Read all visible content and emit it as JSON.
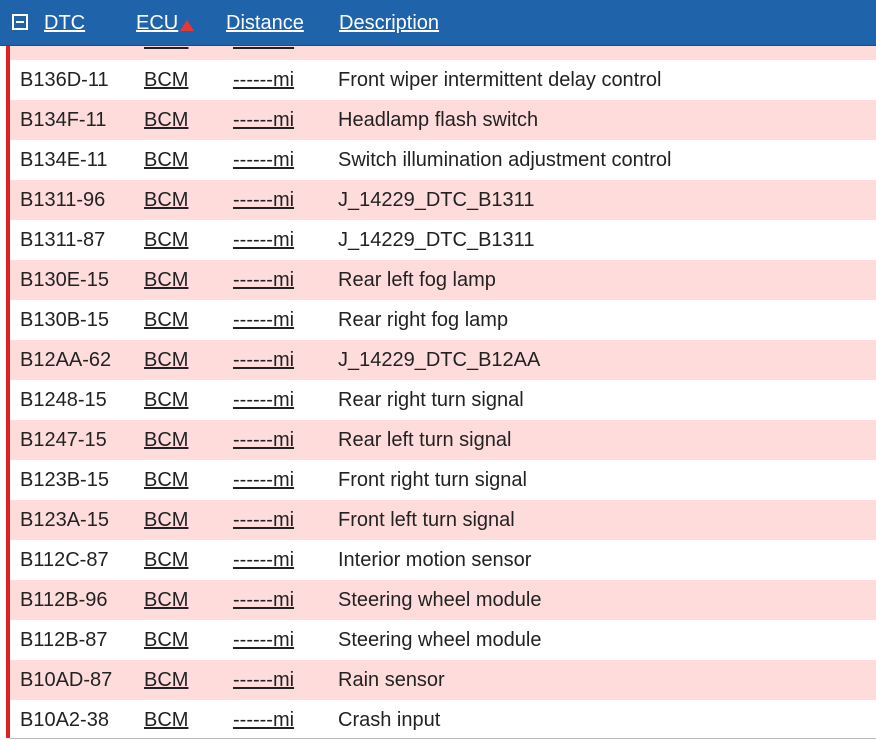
{
  "header": {
    "columns": {
      "dtc": "DTC",
      "ecu": "ECU",
      "distance": "Distance",
      "description": "Description"
    }
  },
  "rows": [
    {
      "dtc": "",
      "ecu": "BCM",
      "distance": "------mi",
      "description": "",
      "shaded": true
    },
    {
      "dtc": "B136D-11",
      "ecu": "BCM",
      "distance": "------mi",
      "description": "Front wiper intermittent delay control",
      "shaded": false
    },
    {
      "dtc": "B134F-11",
      "ecu": "BCM",
      "distance": "------mi",
      "description": "Headlamp flash switch",
      "shaded": true
    },
    {
      "dtc": "B134E-11",
      "ecu": "BCM",
      "distance": "------mi",
      "description": "Switch illumination adjustment control",
      "shaded": false
    },
    {
      "dtc": "B1311-96",
      "ecu": "BCM",
      "distance": "------mi",
      "description": "J_14229_DTC_B1311",
      "shaded": true
    },
    {
      "dtc": "B1311-87",
      "ecu": "BCM",
      "distance": "------mi",
      "description": "J_14229_DTC_B1311",
      "shaded": false
    },
    {
      "dtc": "B130E-15",
      "ecu": "BCM",
      "distance": "------mi",
      "description": "Rear left fog lamp",
      "shaded": true
    },
    {
      "dtc": "B130B-15",
      "ecu": "BCM",
      "distance": "------mi",
      "description": "Rear right fog lamp",
      "shaded": false
    },
    {
      "dtc": "B12AA-62",
      "ecu": "BCM",
      "distance": "------mi",
      "description": "J_14229_DTC_B12AA",
      "shaded": true
    },
    {
      "dtc": "B1248-15",
      "ecu": "BCM",
      "distance": "------mi",
      "description": "Rear right turn signal",
      "shaded": false
    },
    {
      "dtc": "B1247-15",
      "ecu": "BCM",
      "distance": "------mi",
      "description": "Rear left turn signal",
      "shaded": true
    },
    {
      "dtc": "B123B-15",
      "ecu": "BCM",
      "distance": "------mi",
      "description": "Front right turn signal",
      "shaded": false
    },
    {
      "dtc": "B123A-15",
      "ecu": "BCM",
      "distance": "------mi",
      "description": "Front left turn signal",
      "shaded": true
    },
    {
      "dtc": "B112C-87",
      "ecu": "BCM",
      "distance": "------mi",
      "description": "Interior motion sensor",
      "shaded": false
    },
    {
      "dtc": "B112B-96",
      "ecu": "BCM",
      "distance": "------mi",
      "description": "Steering wheel module",
      "shaded": true
    },
    {
      "dtc": "B112B-87",
      "ecu": "BCM",
      "distance": "------mi",
      "description": "Steering wheel module",
      "shaded": false
    },
    {
      "dtc": "B10AD-87",
      "ecu": "BCM",
      "distance": "------mi",
      "description": "Rain sensor",
      "shaded": true
    },
    {
      "dtc": "B10A2-38",
      "ecu": "BCM",
      "distance": "------mi",
      "description": "Crash input",
      "shaded": false
    }
  ],
  "colors": {
    "header_bg": "#1f63aa",
    "row_shade": "#ffdcdc",
    "marker": "#e02020",
    "sort_indicator": "#e8382f"
  },
  "icons": {
    "collapse": "collapse-icon",
    "sort": "sort-ascending-icon"
  }
}
